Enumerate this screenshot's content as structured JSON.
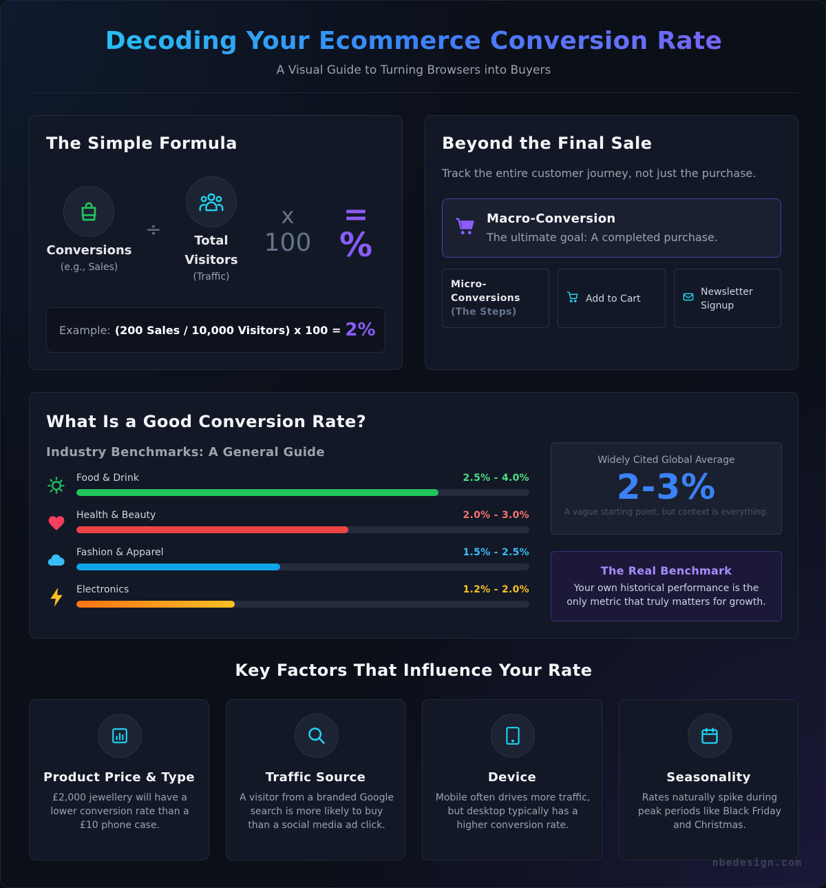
{
  "header": {
    "title": "Decoding Your Ecommerce Conversion Rate",
    "subtitle": "A Visual Guide to Turning Browsers into Buyers"
  },
  "formula": {
    "title": "The Simple Formula",
    "conversions": {
      "label": "Conversions",
      "sub": "(e.g., Sales)",
      "icon": "shopping-bag-icon"
    },
    "divide_op": "÷",
    "visitors": {
      "label_line1": "Total",
      "label_line2": "Visitors",
      "sub": "(Traffic)",
      "icon": "users-group-icon"
    },
    "times_op": "x",
    "times_value": "100",
    "equals_op": "=",
    "percent": "%",
    "example_label": "Example:",
    "example_calc": "(200 Sales / 10,000 Visitors) x 100 =",
    "example_result": "2%"
  },
  "beyond": {
    "title": "Beyond the Final Sale",
    "description": "Track the entire customer journey, not just the purchase.",
    "macro_title": "Macro-Conversion",
    "macro_desc": "The ultimate goal: A completed purchase.",
    "micro_label_line1": "Micro-",
    "micro_label_line2": "Conversions",
    "micro_sub": "(The Steps)",
    "micro_items": [
      {
        "label": "Add to Cart",
        "icon": "cart-icon"
      },
      {
        "label_line1": "Newsletter",
        "label_line2": "Signup",
        "icon": "mail-icon"
      }
    ]
  },
  "good_rate": {
    "title": "What Is a Good Conversion Rate?",
    "benchmarks_title": "Industry Benchmarks: A General Guide",
    "benchmarks": [
      {
        "name": "Food & Drink",
        "range": "2.5% - 4.0%",
        "fill": 0.8,
        "color": "#22c55e",
        "range_color": "#4ade80",
        "icon": "food-icon"
      },
      {
        "name": "Health & Beauty",
        "range": "2.0% - 3.0%",
        "fill": 0.6,
        "color": "#ef4444",
        "range_color": "#f87171",
        "icon": "heart-icon"
      },
      {
        "name": "Fashion & Apparel",
        "range": "1.5% - 2.5%",
        "fill": 0.45,
        "color": "#0ea5e9",
        "range_color": "#38bdf8",
        "icon": "cloud-icon"
      },
      {
        "name": "Electronics",
        "range": "1.2% - 2.0%",
        "fill": 0.35,
        "color": "#f59e0b",
        "range_color": "#fbbf24",
        "icon": "lightning-icon"
      }
    ],
    "average_label": "Widely Cited Global Average",
    "average_value": "2-3%",
    "average_note": "A vague starting point, but context is everything.",
    "real_title": "The Real Benchmark",
    "real_desc": "Your own historical performance is the only metric that truly matters for growth."
  },
  "factors": {
    "title": "Key Factors That Influence Your Rate",
    "items": [
      {
        "title": "Product Price & Type",
        "desc": "£2,000 jewellery will have a lower conversion rate than a £10 phone case.",
        "icon": "bar-chart-icon"
      },
      {
        "title": "Traffic Source",
        "desc": "A visitor from a branded Google search is more likely to buy than a social media ad click.",
        "icon": "search-icon"
      },
      {
        "title": "Device",
        "desc": "Mobile often drives more traffic, but desktop typically has a higher conversion rate.",
        "icon": "tablet-icon"
      },
      {
        "title": "Seasonality",
        "desc": "Rates naturally spike during peak periods like Black Friday and Christmas.",
        "icon": "calendar-icon"
      }
    ]
  },
  "watermark": "nbedesign.com"
}
